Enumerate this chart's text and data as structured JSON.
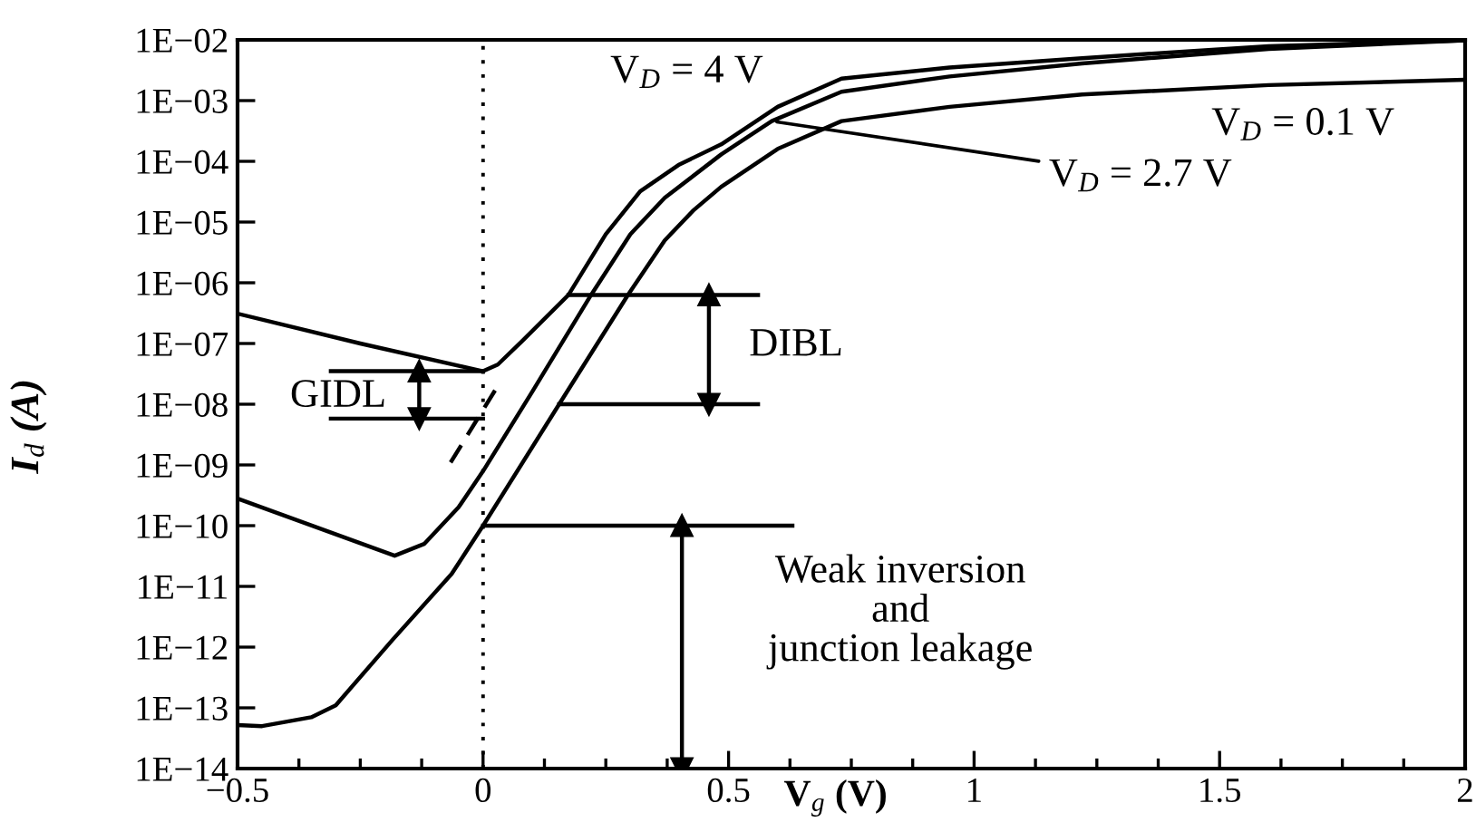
{
  "chart_data": {
    "type": "line",
    "log": "y",
    "grid": false,
    "xlabel": "V$_{g}$ (V)",
    "ylabel": "I$_{d}$ (A)",
    "xlim": [
      -0.5,
      2
    ],
    "ylim": [
      1e-14,
      0.01
    ],
    "xticks": [
      {
        "value": -0.5,
        "label": "−0.5"
      },
      0,
      0.5,
      1,
      1.5,
      2
    ],
    "yticks": [
      {
        "value": 1e-14,
        "label": "1E−14"
      },
      {
        "value": 1e-13,
        "label": "1E−13"
      },
      {
        "value": 1e-12,
        "label": "1E−12"
      },
      {
        "value": 1e-11,
        "label": "1E−11"
      },
      {
        "value": 1e-10,
        "label": "1E−10"
      },
      {
        "value": 1e-09,
        "label": "1E−09"
      },
      {
        "value": 1e-08,
        "label": "1E−08"
      },
      {
        "value": 1e-07,
        "label": "1E−07"
      },
      {
        "value": 1e-06,
        "label": "1E−06"
      },
      {
        "value": 1e-05,
        "label": "1E−05"
      },
      {
        "value": 0.0001,
        "label": "1E−04"
      },
      {
        "value": 0.001,
        "label": "1E−03"
      },
      {
        "value": 0.01,
        "label": "1E−02"
      }
    ],
    "ref_lines": [
      {
        "axis": "x",
        "value": 0,
        "line_style": "dotted",
        "color": "#000000"
      }
    ],
    "series": [
      {
        "color": "#000000",
        "x": [
          -0.5,
          -0.25,
          0,
          0.03,
          0.08,
          0.174,
          0.25,
          0.32,
          0.4,
          0.485,
          0.6,
          0.73,
          0.95,
          1.22,
          1.6,
          2.0
        ],
        "values": [
          3.1e-07,
          1e-07,
          3.5e-08,
          4.5e-08,
          1.1e-07,
          6.3e-07,
          6.3e-06,
          3.2e-05,
          8.9e-05,
          0.00019,
          0.00079,
          0.0023,
          0.0035,
          0.005,
          0.0079,
          0.0098
        ]
      },
      {
        "color": "#000000",
        "x": [
          -0.5,
          -0.18,
          -0.12,
          -0.05,
          0,
          0.1,
          0.22,
          0.3,
          0.37,
          0.485,
          0.588,
          0.73,
          0.95,
          1.22,
          1.6,
          2.0
        ],
        "values": [
          2.8e-10,
          3.2e-11,
          5e-11,
          2e-10,
          7.9e-10,
          1.6e-08,
          6.3e-07,
          6.3e-06,
          2.5e-05,
          0.00013,
          0.00046,
          0.0014,
          0.0025,
          0.0041,
          0.0071,
          0.0098
        ]
      },
      {
        "color": "#000000",
        "x": [
          -0.5,
          -0.45,
          -0.35,
          -0.3,
          -0.185,
          -0.064,
          0,
          0.155,
          0.295,
          0.37,
          0.43,
          0.485,
          0.6,
          0.73,
          0.95,
          1.22,
          1.6,
          2.0
        ],
        "values": [
          5.2e-14,
          5e-14,
          7e-14,
          1.1e-13,
          1.3e-12,
          1.6e-11,
          1e-10,
          1e-08,
          6.3e-07,
          5e-06,
          1.6e-05,
          3.8e-05,
          0.00016,
          0.00046,
          0.00079,
          0.00126,
          0.0018,
          0.0022
        ]
      },
      {
        "type": "line",
        "color": "#000000",
        "line_style": "dashed",
        "x": [
          -0.066,
          0.03
        ],
        "values": [
          1.1e-09,
          2e-08
        ]
      },
      {
        "type": "line",
        "color": "#000000",
        "x": [
          -0.31,
          0
        ],
        "values": [
          3.5e-08,
          3.5e-08
        ]
      },
      {
        "type": "line",
        "color": "#000000",
        "x": [
          -0.31,
          0
        ],
        "values": [
          5.8e-09,
          5.8e-09
        ]
      },
      {
        "type": "line",
        "color": "#000000",
        "x": [
          0.174,
          0.56
        ],
        "values": [
          6.3e-07,
          6.3e-07
        ]
      },
      {
        "type": "line",
        "color": "#000000",
        "x": [
          0.155,
          0.56
        ],
        "values": [
          1e-08,
          1e-08
        ]
      },
      {
        "type": "line",
        "color": "#000000",
        "x": [
          0,
          0.63
        ],
        "values": [
          1e-10,
          1e-10
        ]
      },
      {
        "type": "line",
        "color": "#000000",
        "marker": "triangle",
        "x": [
          -0.13,
          -0.13
        ],
        "values": [
          3.5e-08,
          5.8e-09
        ]
      },
      {
        "type": "line",
        "color": "#000000",
        "marker": "triangle",
        "x": [
          0.46,
          0.46
        ],
        "values": [
          6.3e-07,
          1e-08
        ]
      },
      {
        "type": "line",
        "color": "#000000",
        "marker": "triangle",
        "x": [
          0.405,
          0.405
        ],
        "values": [
          1e-10,
          1e-14
        ]
      }
    ],
    "annotations": [
      "V$_{D}$ = 4 V",
      {
        "text": "V$_{D}$ = 2.7 V",
        "x": 0.588,
        "y": 0.00046
      },
      "V$_{D}$ = 0.1 V",
      "GIDL",
      "DIBL",
      "Weak inversion\nand\njunction leakage"
    ]
  }
}
